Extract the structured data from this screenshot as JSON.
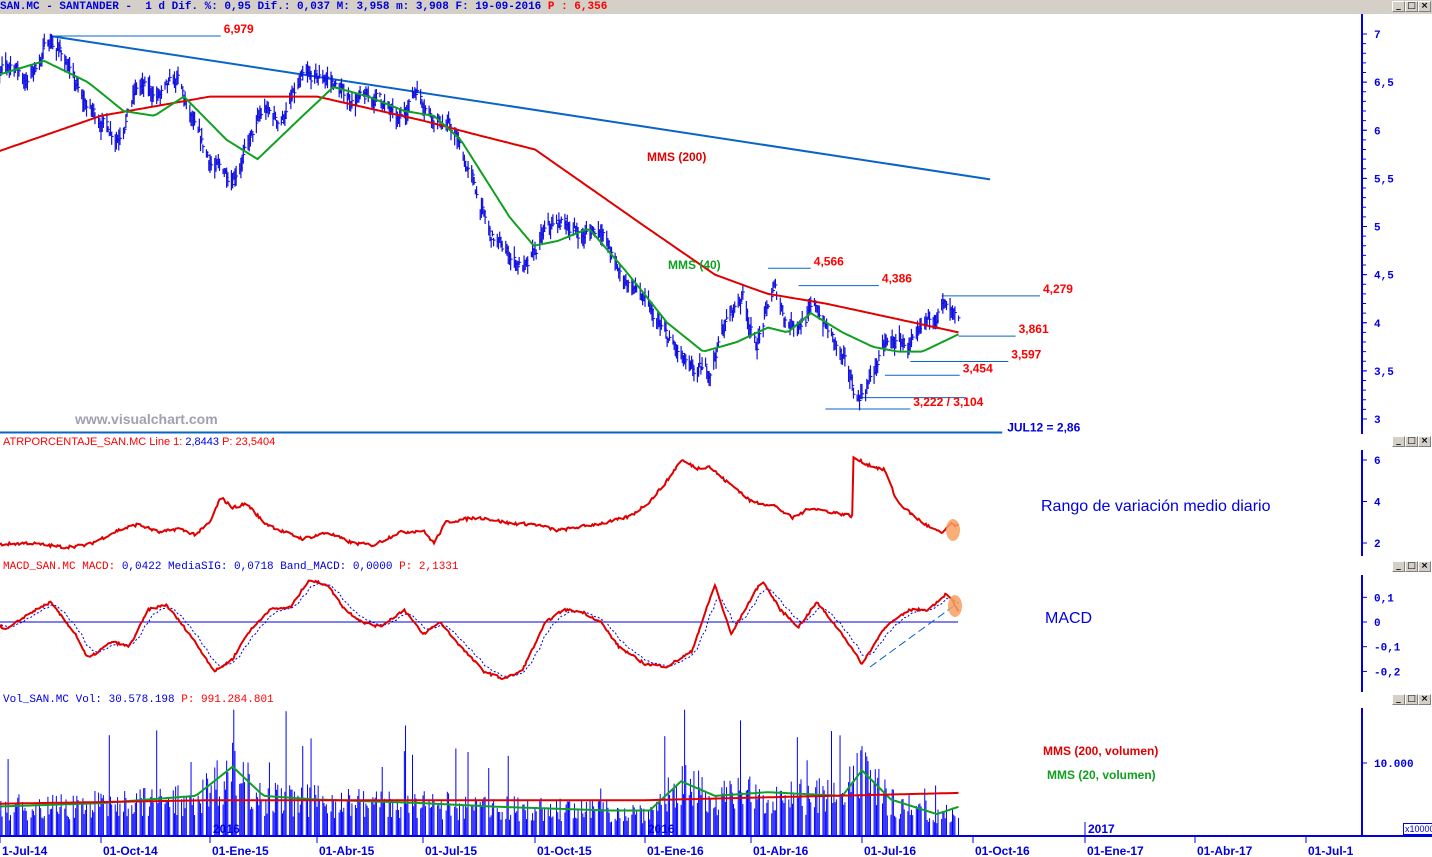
{
  "header": {
    "text": "SAN.MC - SANTANDER -  1 d Dif. %: 0,95 Dif.: 0,037 M: 3,958 m: 3,908 F: 19-09-2016 ",
    "p": "P : 6,356"
  },
  "watermark": "www.visualchart.com",
  "panels": {
    "atr": {
      "name": "ATRPORCENTAJE_SAN.MC Line 1: ",
      "value": "2,8443",
      "p": " P: 23,5404",
      "note": "Rango de variación medio diario"
    },
    "macd": {
      "name": "MACD_SAN.MC MACD: ",
      "values": "0,0422 MediaSIG: 0,0718 Band_MACD: 0,0000",
      "p": " P: 2,1331",
      "note": "MACD"
    },
    "vol": {
      "name": "Vol_SAN.MC Vol: ",
      "value": "30.578.198",
      "p": " P: 991.284.801",
      "note_200": "MMS (200, volumen)",
      "note_20": "MMS (20, volumen)",
      "unit": "x10000"
    }
  },
  "window_buttons": [
    "_",
    "□",
    "×"
  ],
  "colors": {
    "price": "#1010e0",
    "mms200": "#e00000",
    "mms40": "#10a020",
    "trend": "#0a64c8",
    "label": "#ff0000",
    "axis": "#0000e0",
    "highlight": "#f7a060"
  },
  "chart_data": [
    {
      "type": "line",
      "title": "SAN.MC - SANTANDER",
      "x_ticks": [
        "1-Jul-14",
        "01-Oct-14",
        "01-Ene-15",
        "01-Abr-15",
        "01-Jul-15",
        "01-Oct-15",
        "01-Ene-16",
        "01-Abr-16",
        "01-Jul-16",
        "01-Oct-16",
        "01-Ene-17",
        "01-Abr-17",
        "01-Jul-1"
      ],
      "year_labels": [
        "2016",
        "2016",
        "2017"
      ],
      "y_ticks": [
        "7",
        "6,5",
        "6",
        "5,5",
        "5",
        "4,5",
        "4",
        "3,5",
        "3"
      ],
      "ylim": [
        2.9,
        7.2
      ],
      "price": [
        [
          "2014-07-01",
          6.45
        ],
        [
          "2014-07-20",
          6.7
        ],
        [
          "2014-08-01",
          6.5
        ],
        [
          "2014-08-20",
          6.95
        ],
        [
          "2014-09-01",
          6.75
        ],
        [
          "2014-09-15",
          6.3
        ],
        [
          "2014-10-01",
          6.1
        ],
        [
          "2014-10-15",
          5.95
        ],
        [
          "2014-11-01",
          6.45
        ],
        [
          "2014-11-20",
          6.35
        ],
        [
          "2014-12-05",
          6.5
        ],
        [
          "2014-12-20",
          5.95
        ],
        [
          "2015-01-05",
          5.6
        ],
        [
          "2015-01-20",
          5.55
        ],
        [
          "2015-02-01",
          5.8
        ],
        [
          "2015-02-15",
          6.2
        ],
        [
          "2015-03-01",
          6.1
        ],
        [
          "2015-03-20",
          6.5
        ],
        [
          "2015-04-10",
          6.55
        ],
        [
          "2015-04-25",
          6.35
        ],
        [
          "2015-05-10",
          6.3
        ],
        [
          "2015-05-25",
          6.35
        ],
        [
          "2015-06-10",
          6.05
        ],
        [
          "2015-06-25",
          6.45
        ],
        [
          "2015-07-10",
          6.15
        ],
        [
          "2015-07-25",
          6.0
        ],
        [
          "2015-08-10",
          5.5
        ],
        [
          "2015-08-25",
          4.9
        ],
        [
          "2015-09-10",
          4.7
        ],
        [
          "2015-09-25",
          4.55
        ],
        [
          "2015-10-10",
          4.95
        ],
        [
          "2015-10-25",
          5.05
        ],
        [
          "2015-11-10",
          4.9
        ],
        [
          "2015-11-25",
          5.0
        ],
        [
          "2015-12-10",
          4.5
        ],
        [
          "2015-12-25",
          4.35
        ],
        [
          "2016-01-10",
          4.0
        ],
        [
          "2016-01-25",
          3.75
        ],
        [
          "2016-02-10",
          3.45
        ],
        [
          "2016-02-25",
          3.5
        ],
        [
          "2016-03-10",
          4.0
        ],
        [
          "2016-03-25",
          4.3
        ],
        [
          "2016-04-05",
          3.75
        ],
        [
          "2016-04-20",
          4.35
        ],
        [
          "2016-05-01",
          4.0
        ],
        [
          "2016-05-15",
          4.05
        ],
        [
          "2016-05-25",
          4.15
        ],
        [
          "2016-06-10",
          3.75
        ],
        [
          "2016-06-27",
          3.22
        ],
        [
          "2016-07-05",
          3.35
        ],
        [
          "2016-07-20",
          3.75
        ],
        [
          "2016-08-01",
          3.8
        ],
        [
          "2016-08-15",
          3.75
        ],
        [
          "2016-08-25",
          4.0
        ],
        [
          "2016-09-05",
          4.2
        ],
        [
          "2016-09-19",
          3.93
        ]
      ],
      "mms200": [
        [
          "2014-07-01",
          5.75
        ],
        [
          "2014-10-01",
          6.15
        ],
        [
          "2015-01-01",
          6.35
        ],
        [
          "2015-04-01",
          6.35
        ],
        [
          "2015-07-01",
          6.1
        ],
        [
          "2015-08-15",
          5.95
        ],
        [
          "2015-10-01",
          5.8
        ],
        [
          "2016-01-01",
          5.0
        ],
        [
          "2016-03-01",
          4.5
        ],
        [
          "2016-04-15",
          4.3
        ],
        [
          "2016-06-01",
          4.2
        ],
        [
          "2016-09-19",
          3.9
        ]
      ],
      "mms40": [
        [
          "2014-07-01",
          6.55
        ],
        [
          "2014-08-15",
          6.72
        ],
        [
          "2014-09-20",
          6.5
        ],
        [
          "2014-10-20",
          6.2
        ],
        [
          "2014-11-15",
          6.15
        ],
        [
          "2014-12-10",
          6.35
        ],
        [
          "2015-01-15",
          5.9
        ],
        [
          "2015-02-10",
          5.7
        ],
        [
          "2015-03-20",
          6.15
        ],
        [
          "2015-04-15",
          6.45
        ],
        [
          "2015-05-15",
          6.35
        ],
        [
          "2015-06-15",
          6.2
        ],
        [
          "2015-07-10",
          6.15
        ],
        [
          "2015-08-01",
          5.9
        ],
        [
          "2015-09-10",
          5.1
        ],
        [
          "2015-09-30",
          4.8
        ],
        [
          "2015-10-20",
          4.85
        ],
        [
          "2015-11-15",
          4.98
        ],
        [
          "2015-12-15",
          4.55
        ],
        [
          "2016-01-20",
          4.0
        ],
        [
          "2016-02-20",
          3.7
        ],
        [
          "2016-03-20",
          3.8
        ],
        [
          "2016-04-15",
          3.95
        ],
        [
          "2016-05-01",
          3.9
        ],
        [
          "2016-05-20",
          4.1
        ],
        [
          "2016-06-15",
          3.9
        ],
        [
          "2016-07-10",
          3.75
        ],
        [
          "2016-07-31",
          3.7
        ],
        [
          "2016-08-20",
          3.7
        ],
        [
          "2016-09-19",
          3.88
        ]
      ],
      "series_labels": {
        "mms200": "MMS (200)",
        "mms40": "MMS (40)"
      },
      "trendline": {
        "from": [
          "2014-08-20",
          6.979
        ],
        "to": [
          "2016-10-15",
          5.49
        ]
      },
      "support_line": {
        "label": "JUL12 = 2,86",
        "price": 2.86,
        "to": "2016-10-25"
      },
      "levels": [
        {
          "label": "6,979",
          "price": 6.979,
          "from": "2014-08-20",
          "to": "2015-01-10"
        },
        {
          "label": "4,566",
          "price": 4.566,
          "from": "2016-04-15",
          "to": "2016-05-20"
        },
        {
          "label": "4,386",
          "price": 4.386,
          "from": "2016-05-10",
          "to": "2016-07-15"
        },
        {
          "label": "4,279",
          "price": 4.279,
          "from": "2016-09-05",
          "to": "2016-11-25"
        },
        {
          "label": "3,861",
          "price": 3.861,
          "from": "2016-09-19",
          "to": "2016-11-05"
        },
        {
          "label": "3,597",
          "price": 3.597,
          "from": "2016-08-10",
          "to": "2016-10-30"
        },
        {
          "label": "3,454",
          "price": 3.454,
          "from": "2016-07-20",
          "to": "2016-09-20"
        },
        {
          "label": "",
          "price": 3.222,
          "from": "2016-06-30",
          "to": "2016-09-25"
        },
        {
          "label": "3,222 / 3,104",
          "price": 3.104,
          "from": "2016-06-01",
          "to": "2016-08-10"
        }
      ]
    },
    {
      "type": "line",
      "title": "ATRPORCENTAJE_SAN.MC",
      "y_ticks": [
        "6",
        "4",
        "2"
      ],
      "ylim": [
        1.4,
        6.5
      ],
      "values": [
        [
          "2014-07-01",
          1.9
        ],
        [
          "2014-08-01",
          2.0
        ],
        [
          "2014-09-01",
          1.8
        ],
        [
          "2014-09-20",
          1.9
        ],
        [
          "2014-10-15",
          2.6
        ],
        [
          "2014-11-01",
          2.9
        ],
        [
          "2014-11-20",
          2.5
        ],
        [
          "2014-12-05",
          2.7
        ],
        [
          "2014-12-20",
          2.4
        ],
        [
          "2015-01-01",
          3.0
        ],
        [
          "2015-01-10",
          4.2
        ],
        [
          "2015-01-20",
          3.7
        ],
        [
          "2015-02-01",
          3.9
        ],
        [
          "2015-02-15",
          3.0
        ],
        [
          "2015-03-01",
          2.6
        ],
        [
          "2015-03-20",
          2.2
        ],
        [
          "2015-04-10",
          2.5
        ],
        [
          "2015-05-01",
          2.0
        ],
        [
          "2015-05-20",
          1.9
        ],
        [
          "2015-06-10",
          2.5
        ],
        [
          "2015-07-01",
          2.6
        ],
        [
          "2015-07-10",
          2.0
        ],
        [
          "2015-07-20",
          3.0
        ],
        [
          "2015-08-10",
          3.2
        ],
        [
          "2015-08-20",
          3.2
        ],
        [
          "2015-09-10",
          2.95
        ],
        [
          "2015-10-01",
          2.9
        ],
        [
          "2015-10-20",
          2.6
        ],
        [
          "2015-11-10",
          2.8
        ],
        [
          "2015-12-01",
          3.0
        ],
        [
          "2015-12-20",
          3.3
        ],
        [
          "2016-01-05",
          4.0
        ],
        [
          "2016-01-20",
          5.0
        ],
        [
          "2016-02-01",
          6.0
        ],
        [
          "2016-02-15",
          5.6
        ],
        [
          "2016-02-25",
          5.7
        ],
        [
          "2016-03-10",
          5.0
        ],
        [
          "2016-03-20",
          4.6
        ],
        [
          "2016-04-01",
          4.0
        ],
        [
          "2016-04-20",
          3.8
        ],
        [
          "2016-05-05",
          3.2
        ],
        [
          "2016-05-20",
          3.7
        ],
        [
          "2016-06-05",
          3.5
        ],
        [
          "2016-06-23",
          3.3
        ],
        [
          "2016-06-24",
          6.1
        ],
        [
          "2016-07-05",
          5.8
        ],
        [
          "2016-07-20",
          5.5
        ],
        [
          "2016-07-30",
          4.0
        ],
        [
          "2016-08-15",
          3.2
        ],
        [
          "2016-08-25",
          2.8
        ],
        [
          "2016-09-05",
          2.45
        ],
        [
          "2016-09-12",
          2.9
        ],
        [
          "2016-09-19",
          2.84
        ]
      ]
    },
    {
      "type": "line",
      "title": "MACD_SAN.MC",
      "y_ticks": [
        "0,1",
        "0",
        "-0,1",
        "-0,2"
      ],
      "ylim": [
        -0.28,
        0.2
      ],
      "series": [
        {
          "name": "MACD",
          "values": [
            [
              "2014-07-01",
              0
            ],
            [
              "2014-07-15",
              -0.03
            ],
            [
              "2014-08-01",
              0.03
            ],
            [
              "2014-08-20",
              0.08
            ],
            [
              "2014-09-10",
              -0.05
            ],
            [
              "2014-09-20",
              -0.15
            ],
            [
              "2014-10-10",
              -0.08
            ],
            [
              "2014-10-25",
              -0.1
            ],
            [
              "2014-11-10",
              0.05
            ],
            [
              "2014-11-25",
              0.07
            ],
            [
              "2014-12-15",
              -0.05
            ],
            [
              "2015-01-05",
              -0.2
            ],
            [
              "2015-01-20",
              -0.15
            ],
            [
              "2015-02-01",
              -0.05
            ],
            [
              "2015-02-20",
              0.05
            ],
            [
              "2015-03-10",
              0.06
            ],
            [
              "2015-03-25",
              0.17
            ],
            [
              "2015-04-10",
              0.15
            ],
            [
              "2015-04-25",
              0.05
            ],
            [
              "2015-05-10",
              0.0
            ],
            [
              "2015-05-25",
              -0.02
            ],
            [
              "2015-06-15",
              0.05
            ],
            [
              "2015-07-01",
              -0.05
            ],
            [
              "2015-07-15",
              0.0
            ],
            [
              "2015-08-01",
              -0.1
            ],
            [
              "2015-08-20",
              -0.2
            ],
            [
              "2015-09-05",
              -0.23
            ],
            [
              "2015-09-20",
              -0.2
            ],
            [
              "2015-10-10",
              0.0
            ],
            [
              "2015-10-25",
              0.05
            ],
            [
              "2015-11-10",
              0.04
            ],
            [
              "2015-11-25",
              0.0
            ],
            [
              "2015-12-10",
              -0.1
            ],
            [
              "2016-01-01",
              -0.17
            ],
            [
              "2016-01-20",
              -0.18
            ],
            [
              "2016-02-10",
              -0.12
            ],
            [
              "2016-03-01",
              0.15
            ],
            [
              "2016-03-15",
              -0.05
            ],
            [
              "2016-04-10",
              0.17
            ],
            [
              "2016-04-25",
              0.05
            ],
            [
              "2016-05-10",
              -0.02
            ],
            [
              "2016-05-25",
              0.08
            ],
            [
              "2016-06-15",
              -0.05
            ],
            [
              "2016-07-01",
              -0.17
            ],
            [
              "2016-07-20",
              -0.02
            ],
            [
              "2016-08-10",
              0.05
            ],
            [
              "2016-08-25",
              0.05
            ],
            [
              "2016-09-10",
              0.12
            ],
            [
              "2016-09-19",
              0.04
            ]
          ]
        },
        {
          "name": "MediaSIG"
        }
      ],
      "zero_line": 0
    },
    {
      "type": "bar",
      "title": "Vol_SAN.MC",
      "y_ticks": [
        "10.000"
      ],
      "ylim": [
        0,
        17500
      ],
      "mms200": [
        [
          "2014-07-01",
          4400
        ],
        [
          "2015-01-01",
          4900
        ],
        [
          "2016-01-01",
          4900
        ],
        [
          "2016-09-19",
          5900
        ]
      ],
      "mms20": [
        [
          "2014-07-01",
          4000
        ],
        [
          "2014-10-01",
          4500
        ],
        [
          "2014-12-20",
          5500
        ],
        [
          "2015-01-20",
          9500
        ],
        [
          "2015-02-15",
          5500
        ],
        [
          "2015-04-01",
          5000
        ],
        [
          "2015-07-01",
          4500
        ],
        [
          "2015-09-01",
          4000
        ],
        [
          "2015-12-01",
          3500
        ],
        [
          "2016-01-05",
          3500
        ],
        [
          "2016-02-01",
          7500
        ],
        [
          "2016-03-01",
          5500
        ],
        [
          "2016-04-15",
          6000
        ],
        [
          "2016-06-15",
          5500
        ],
        [
          "2016-07-01",
          9000
        ],
        [
          "2016-07-25",
          5000
        ],
        [
          "2016-09-01",
          3000
        ],
        [
          "2016-09-19",
          4000
        ]
      ]
    }
  ]
}
